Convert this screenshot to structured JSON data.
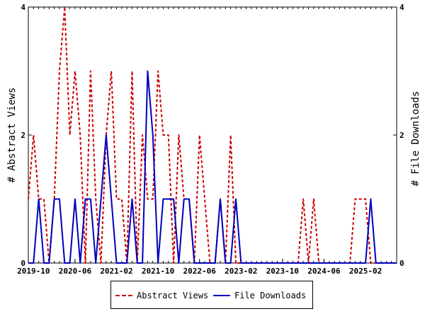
{
  "chart_data": {
    "type": "line",
    "y_left_label": "# Abstract Views",
    "y_right_label": "# File Downloads",
    "ylim": [
      0,
      4
    ],
    "y_ticks": [
      0,
      2,
      4
    ],
    "x_range": [
      "2019-09",
      "2025-08"
    ],
    "x_tick_labels": [
      "2019-10",
      "2020-06",
      "2021-02",
      "2021-10",
      "2022-06",
      "2023-02",
      "2023-10",
      "2024-06",
      "2025-02"
    ],
    "x": [
      "2019-09",
      "2019-10",
      "2019-11",
      "2019-12",
      "2020-01",
      "2020-02",
      "2020-03",
      "2020-04",
      "2020-05",
      "2020-06",
      "2020-07",
      "2020-08",
      "2020-09",
      "2020-10",
      "2020-11",
      "2020-12",
      "2021-01",
      "2021-02",
      "2021-03",
      "2021-04",
      "2021-05",
      "2021-06",
      "2021-07",
      "2021-08",
      "2021-09",
      "2021-10",
      "2021-11",
      "2021-12",
      "2022-01",
      "2022-02",
      "2022-03",
      "2022-04",
      "2022-05",
      "2022-06",
      "2022-07",
      "2022-08",
      "2022-09",
      "2022-10",
      "2022-11",
      "2022-12",
      "2023-01",
      "2023-02",
      "2023-03",
      "2023-04",
      "2023-05",
      "2023-06",
      "2023-07",
      "2023-08",
      "2023-09",
      "2023-10",
      "2023-11",
      "2023-12",
      "2024-01",
      "2024-02",
      "2024-03",
      "2024-04",
      "2024-05",
      "2024-06",
      "2024-07",
      "2024-08",
      "2024-09",
      "2024-10",
      "2024-11",
      "2024-12",
      "2025-01",
      "2025-02",
      "2025-03",
      "2025-04",
      "2025-05",
      "2025-06",
      "2025-07",
      "2025-08"
    ],
    "series": [
      {
        "name": "Abstract Views",
        "axis": "left",
        "color": "#cc0000",
        "dash": "dashed",
        "values": [
          1,
          2,
          1,
          1,
          0,
          1,
          3,
          4,
          2,
          3,
          2,
          0,
          3,
          1,
          0,
          2,
          3,
          1,
          1,
          0,
          3,
          0,
          2,
          1,
          1,
          3,
          2,
          2,
          0,
          2,
          1,
          1,
          0,
          2,
          1,
          0,
          0,
          1,
          0,
          2,
          0,
          0,
          0,
          0,
          0,
          0,
          0,
          0,
          0,
          0,
          0,
          0,
          0,
          1,
          0,
          1,
          0,
          0,
          0,
          0,
          0,
          0,
          0,
          1,
          1,
          1,
          0,
          0,
          0,
          0,
          0,
          0
        ]
      },
      {
        "name": "File Downloads",
        "axis": "right",
        "color": "#0000bb",
        "dash": "solid",
        "values": [
          0,
          0,
          1,
          0,
          0,
          1,
          1,
          0,
          0,
          1,
          0,
          1,
          1,
          0,
          1,
          2,
          1,
          0,
          0,
          0,
          1,
          0,
          0,
          3,
          2,
          0,
          1,
          1,
          1,
          0,
          1,
          1,
          0,
          0,
          0,
          0,
          0,
          1,
          0,
          0,
          1,
          0,
          0,
          0,
          0,
          0,
          0,
          0,
          0,
          0,
          0,
          0,
          0,
          0,
          0,
          0,
          0,
          0,
          0,
          0,
          0,
          0,
          0,
          0,
          0,
          0,
          1,
          0,
          0,
          0,
          0,
          0
        ]
      }
    ],
    "legend_position": "bottom"
  }
}
